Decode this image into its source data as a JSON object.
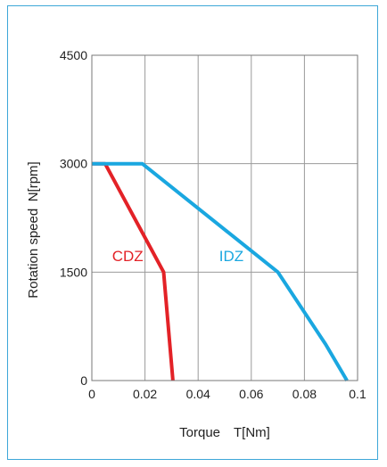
{
  "chart_data": {
    "type": "line",
    "xlabel": "Torque T[Nm]",
    "ylabel": "Rotation speed N[rpm]",
    "xlim": [
      0,
      0.1
    ],
    "ylim": [
      0,
      4500
    ],
    "x_ticks": [
      "0",
      "0.02",
      "0.04",
      "0.06",
      "0.08",
      "0.1"
    ],
    "y_ticks": [
      "0",
      "1500",
      "3000",
      "4500"
    ],
    "grid": true,
    "series": [
      {
        "name": "CDZ",
        "color": "#e32227",
        "points": [
          [
            0,
            3000
          ],
          [
            0.005,
            3000
          ],
          [
            0.027,
            1500
          ],
          [
            0.0305,
            0
          ]
        ]
      },
      {
        "name": "IDZ",
        "color": "#1aa7e0",
        "points": [
          [
            0,
            3000
          ],
          [
            0.019,
            3000
          ],
          [
            0.07,
            1500
          ],
          [
            0.088,
            500
          ],
          [
            0.096,
            0
          ]
        ]
      }
    ]
  }
}
